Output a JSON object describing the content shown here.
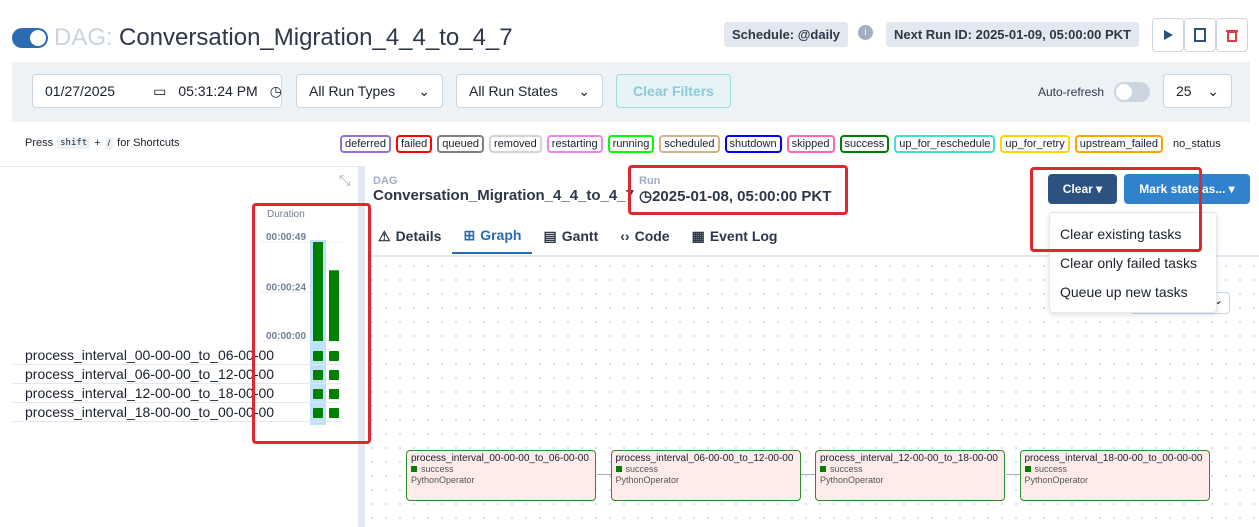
{
  "header": {
    "dag_label": "DAG:",
    "dag_id": "Conversation_Migration_4_4_to_4_7",
    "schedule": "Schedule: @daily",
    "next_run": "Next Run ID: 2025-01-09, 05:00:00 PKT"
  },
  "filters": {
    "date": "01/27/2025",
    "time": "05:31:24 PM",
    "run_types": "All Run Types",
    "run_states": "All Run States",
    "clear_filters": "Clear Filters",
    "auto_refresh": "Auto-refresh",
    "page_size": "25"
  },
  "shortcuts": {
    "press": "Press",
    "shift": "shift",
    "plus": "+",
    "slash": "/",
    "suffix": "for Shortcuts"
  },
  "states": [
    {
      "label": "deferred",
      "color": "#9370db"
    },
    {
      "label": "failed",
      "color": "#ff0000"
    },
    {
      "label": "queued",
      "color": "#808080"
    },
    {
      "label": "removed",
      "color": "#d3d3d3"
    },
    {
      "label": "restarting",
      "color": "#ee82ee"
    },
    {
      "label": "running",
      "color": "#00ff00"
    },
    {
      "label": "scheduled",
      "color": "#d2b48c"
    },
    {
      "label": "shutdown",
      "color": "#0000ff"
    },
    {
      "label": "skipped",
      "color": "#ff69b4"
    },
    {
      "label": "success",
      "color": "#008000"
    },
    {
      "label": "up_for_reschedule",
      "color": "#40e0d0"
    },
    {
      "label": "up_for_retry",
      "color": "#ffd700"
    },
    {
      "label": "upstream_failed",
      "color": "#ffa500"
    },
    {
      "label": "no_status",
      "color": "#ffffff"
    }
  ],
  "grid": {
    "duration_label": "Duration",
    "chart_data": {
      "type": "bar",
      "values": [
        49,
        35
      ],
      "color": "#008000",
      "ylim": [
        0,
        50
      ],
      "yticks": [
        {
          "value": 0,
          "label": "00:00:00"
        },
        {
          "value": 24,
          "label": "00:00:24"
        },
        {
          "value": 49,
          "label": "00:00:49"
        }
      ]
    },
    "tasks": [
      "process_interval_00-00-00_to_06-00-00",
      "process_interval_06-00-00_to_12-00-00",
      "process_interval_12-00-00_to_18-00-00",
      "process_interval_18-00-00_to_00-00-00"
    ]
  },
  "details": {
    "dag_label": "DAG",
    "dag_id": "Conversation_Migration_4_4_to_4_7",
    "run_label": "Run",
    "run_id": "2025-01-08, 05:00:00 PKT",
    "clear": "Clear",
    "mark_state": "Mark state as...",
    "clear_menu": [
      "Clear existing tasks",
      "Clear only failed tasks",
      "Queue up new tasks"
    ],
    "tabs": [
      "Details",
      "Graph",
      "Gantt",
      "Code",
      "Event Log"
    ]
  },
  "graph": {
    "nodes": [
      {
        "name": "process_interval_00-00-00_to_06-00-00",
        "status": "success",
        "operator": "PythonOperator"
      },
      {
        "name": "process_interval_06-00-00_to_12-00-00",
        "status": "success",
        "operator": "PythonOperator"
      },
      {
        "name": "process_interval_12-00-00_to_18-00-00",
        "status": "success",
        "operator": "PythonOperator"
      },
      {
        "name": "process_interval_18-00-00_to_00-00-00",
        "status": "success",
        "operator": "PythonOperator"
      }
    ]
  }
}
